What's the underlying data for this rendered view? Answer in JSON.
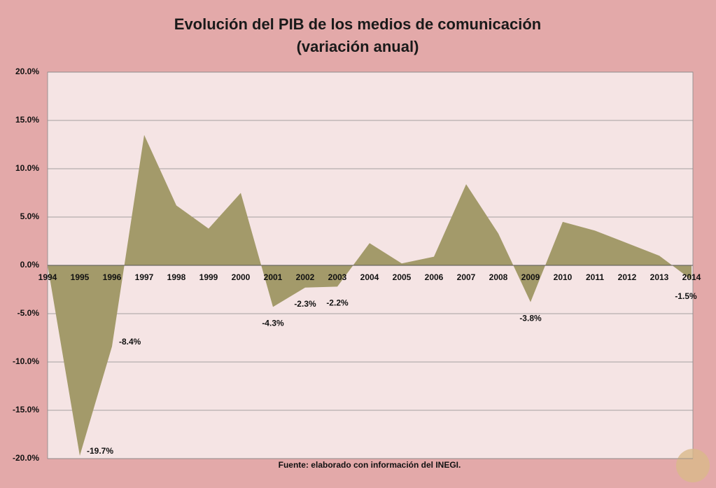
{
  "chart_data": {
    "type": "area",
    "title": "Evolución del PIB de los medios de comunicación",
    "subtitle": "(variación anual)",
    "source": "Fuente: elaborado con información del INEGI.",
    "categories": [
      "1994",
      "1995",
      "1996",
      "1997",
      "1998",
      "1999",
      "2000",
      "2001",
      "2002",
      "2003",
      "2004",
      "2005",
      "2006",
      "2007",
      "2008",
      "2009",
      "2010",
      "2011",
      "2012",
      "2013",
      "2014"
    ],
    "values": [
      0,
      -19.7,
      -8.4,
      13.5,
      6.2,
      3.8,
      7.5,
      -4.3,
      -2.3,
      -2.2,
      2.3,
      0.2,
      0.9,
      8.4,
      3.3,
      -3.8,
      4.5,
      3.6,
      2.3,
      1.0,
      -1.5
    ],
    "value_labels": [
      null,
      "-19.7%",
      "-8.4%",
      null,
      null,
      null,
      null,
      "-4.3%",
      "-2.3%",
      "-2.2%",
      null,
      null,
      null,
      null,
      null,
      "-3.8%",
      null,
      null,
      null,
      null,
      "-1.5%"
    ],
    "color": "#a39a6a",
    "ylim": [
      -20,
      20
    ],
    "yticks": [
      {
        "value": -20,
        "label": "-20.0%"
      },
      {
        "value": -15,
        "label": "-15.0%"
      },
      {
        "value": -10,
        "label": "-10.0%"
      },
      {
        "value": -5,
        "label": "-5.0%"
      },
      {
        "value": 0,
        "label": "0.0%"
      },
      {
        "value": 5,
        "label": "5.0%"
      },
      {
        "value": 10,
        "label": "10.0%"
      },
      {
        "value": 15,
        "label": "15.0%"
      },
      {
        "value": 20,
        "label": "20.0%"
      }
    ],
    "grid": true
  }
}
